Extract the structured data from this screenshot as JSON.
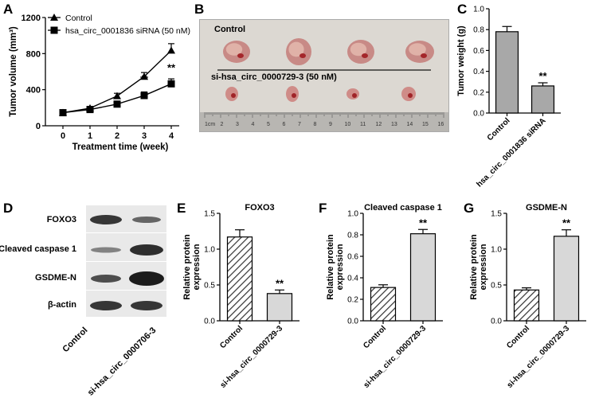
{
  "panels": {
    "A": {
      "label": "A",
      "chart_data": {
        "type": "line",
        "x": [
          0,
          1,
          2,
          3,
          4
        ],
        "xlabel": "Treatment time (week)",
        "ylabel": "Tumor volume (mm³)",
        "ylim": [
          0,
          1200
        ],
        "yticks": [
          "0",
          "400",
          "800",
          "1200"
        ],
        "xticks": [
          "0",
          "1",
          "2",
          "3",
          "4"
        ],
        "legend_position": "top-left",
        "series": [
          {
            "name": "Control",
            "marker": "triangle",
            "values": [
              145,
              195,
              330,
              545,
              835
            ],
            "errors": [
              15,
              20,
              30,
              45,
              75
            ]
          },
          {
            "name": "hsa_circ_0001836 siRNA (50 nM)",
            "marker": "square",
            "values": [
              145,
              180,
              240,
              335,
              465
            ],
            "errors": [
              10,
              15,
              20,
              40,
              55
            ]
          }
        ],
        "annotations": [
          {
            "x": 3,
            "y": 335,
            "text": "**"
          },
          {
            "x": 4,
            "y": 465,
            "text": "**"
          }
        ]
      }
    },
    "B": {
      "label": "B",
      "top_label": "Control",
      "bottom_label": "si-hsa_circ_0000729-3 (50 nM)",
      "ruler_labels": [
        "1cm",
        "2",
        "3",
        "4",
        "5",
        "6",
        "7",
        "8",
        "9",
        "10",
        "11",
        "12",
        "13",
        "14",
        "15",
        "16"
      ]
    },
    "C": {
      "label": "C",
      "chart_data": {
        "type": "bar",
        "categories": [
          "Control",
          "hsa_circ_0001836 siRNA"
        ],
        "values": [
          0.78,
          0.26
        ],
        "errors": [
          0.05,
          0.03
        ],
        "ylabel": "Tumor weight (g)",
        "ylim": [
          0,
          1.0
        ],
        "yticks": [
          "0.0",
          "0.2",
          "0.4",
          "0.6",
          "0.8",
          "1.0"
        ],
        "annotations": [
          {
            "category": 1,
            "text": "**"
          }
        ]
      }
    },
    "D": {
      "label": "D",
      "bands": [
        "FOXO3",
        "Cleaved caspase 1",
        "GSDME-N",
        "β-actin"
      ],
      "lanes": [
        "Control",
        "si-hsa_circ_0000706-3"
      ]
    },
    "E": {
      "label": "E",
      "chart_data": {
        "type": "bar",
        "title": "FOXO3",
        "categories": [
          "Control",
          "si-hsa_circ_0000729-3"
        ],
        "values": [
          1.17,
          0.38
        ],
        "errors": [
          0.1,
          0.05
        ],
        "ylabel": "Relative protein expression",
        "ylim": [
          0,
          1.5
        ],
        "yticks": [
          "0.0",
          "0.5",
          "1.0",
          "1.5"
        ],
        "annotations": [
          {
            "category": 1,
            "text": "**"
          }
        ]
      }
    },
    "F": {
      "label": "F",
      "chart_data": {
        "type": "bar",
        "title": "Cleaved caspase 1",
        "categories": [
          "Control",
          "si-hsa_circ_0000729-3"
        ],
        "values": [
          0.31,
          0.81
        ],
        "errors": [
          0.025,
          0.04
        ],
        "ylabel": "Relative protein expression",
        "ylim": [
          0,
          1.0
        ],
        "yticks": [
          "0.0",
          "0.2",
          "0.4",
          "0.6",
          "0.8",
          "1.0"
        ],
        "annotations": [
          {
            "category": 1,
            "text": "**"
          }
        ]
      }
    },
    "G": {
      "label": "G",
      "chart_data": {
        "type": "bar",
        "title": "GSDME-N",
        "categories": [
          "Control",
          "si-hsa_circ_0000729-3"
        ],
        "values": [
          0.43,
          1.18
        ],
        "errors": [
          0.03,
          0.09
        ],
        "ylabel": "Relative protein expression",
        "ylim": [
          0,
          1.5
        ],
        "yticks": [
          "0.0",
          "0.5",
          "1.0",
          "1.5"
        ],
        "annotations": [
          {
            "category": 1,
            "text": "**"
          }
        ]
      }
    }
  }
}
